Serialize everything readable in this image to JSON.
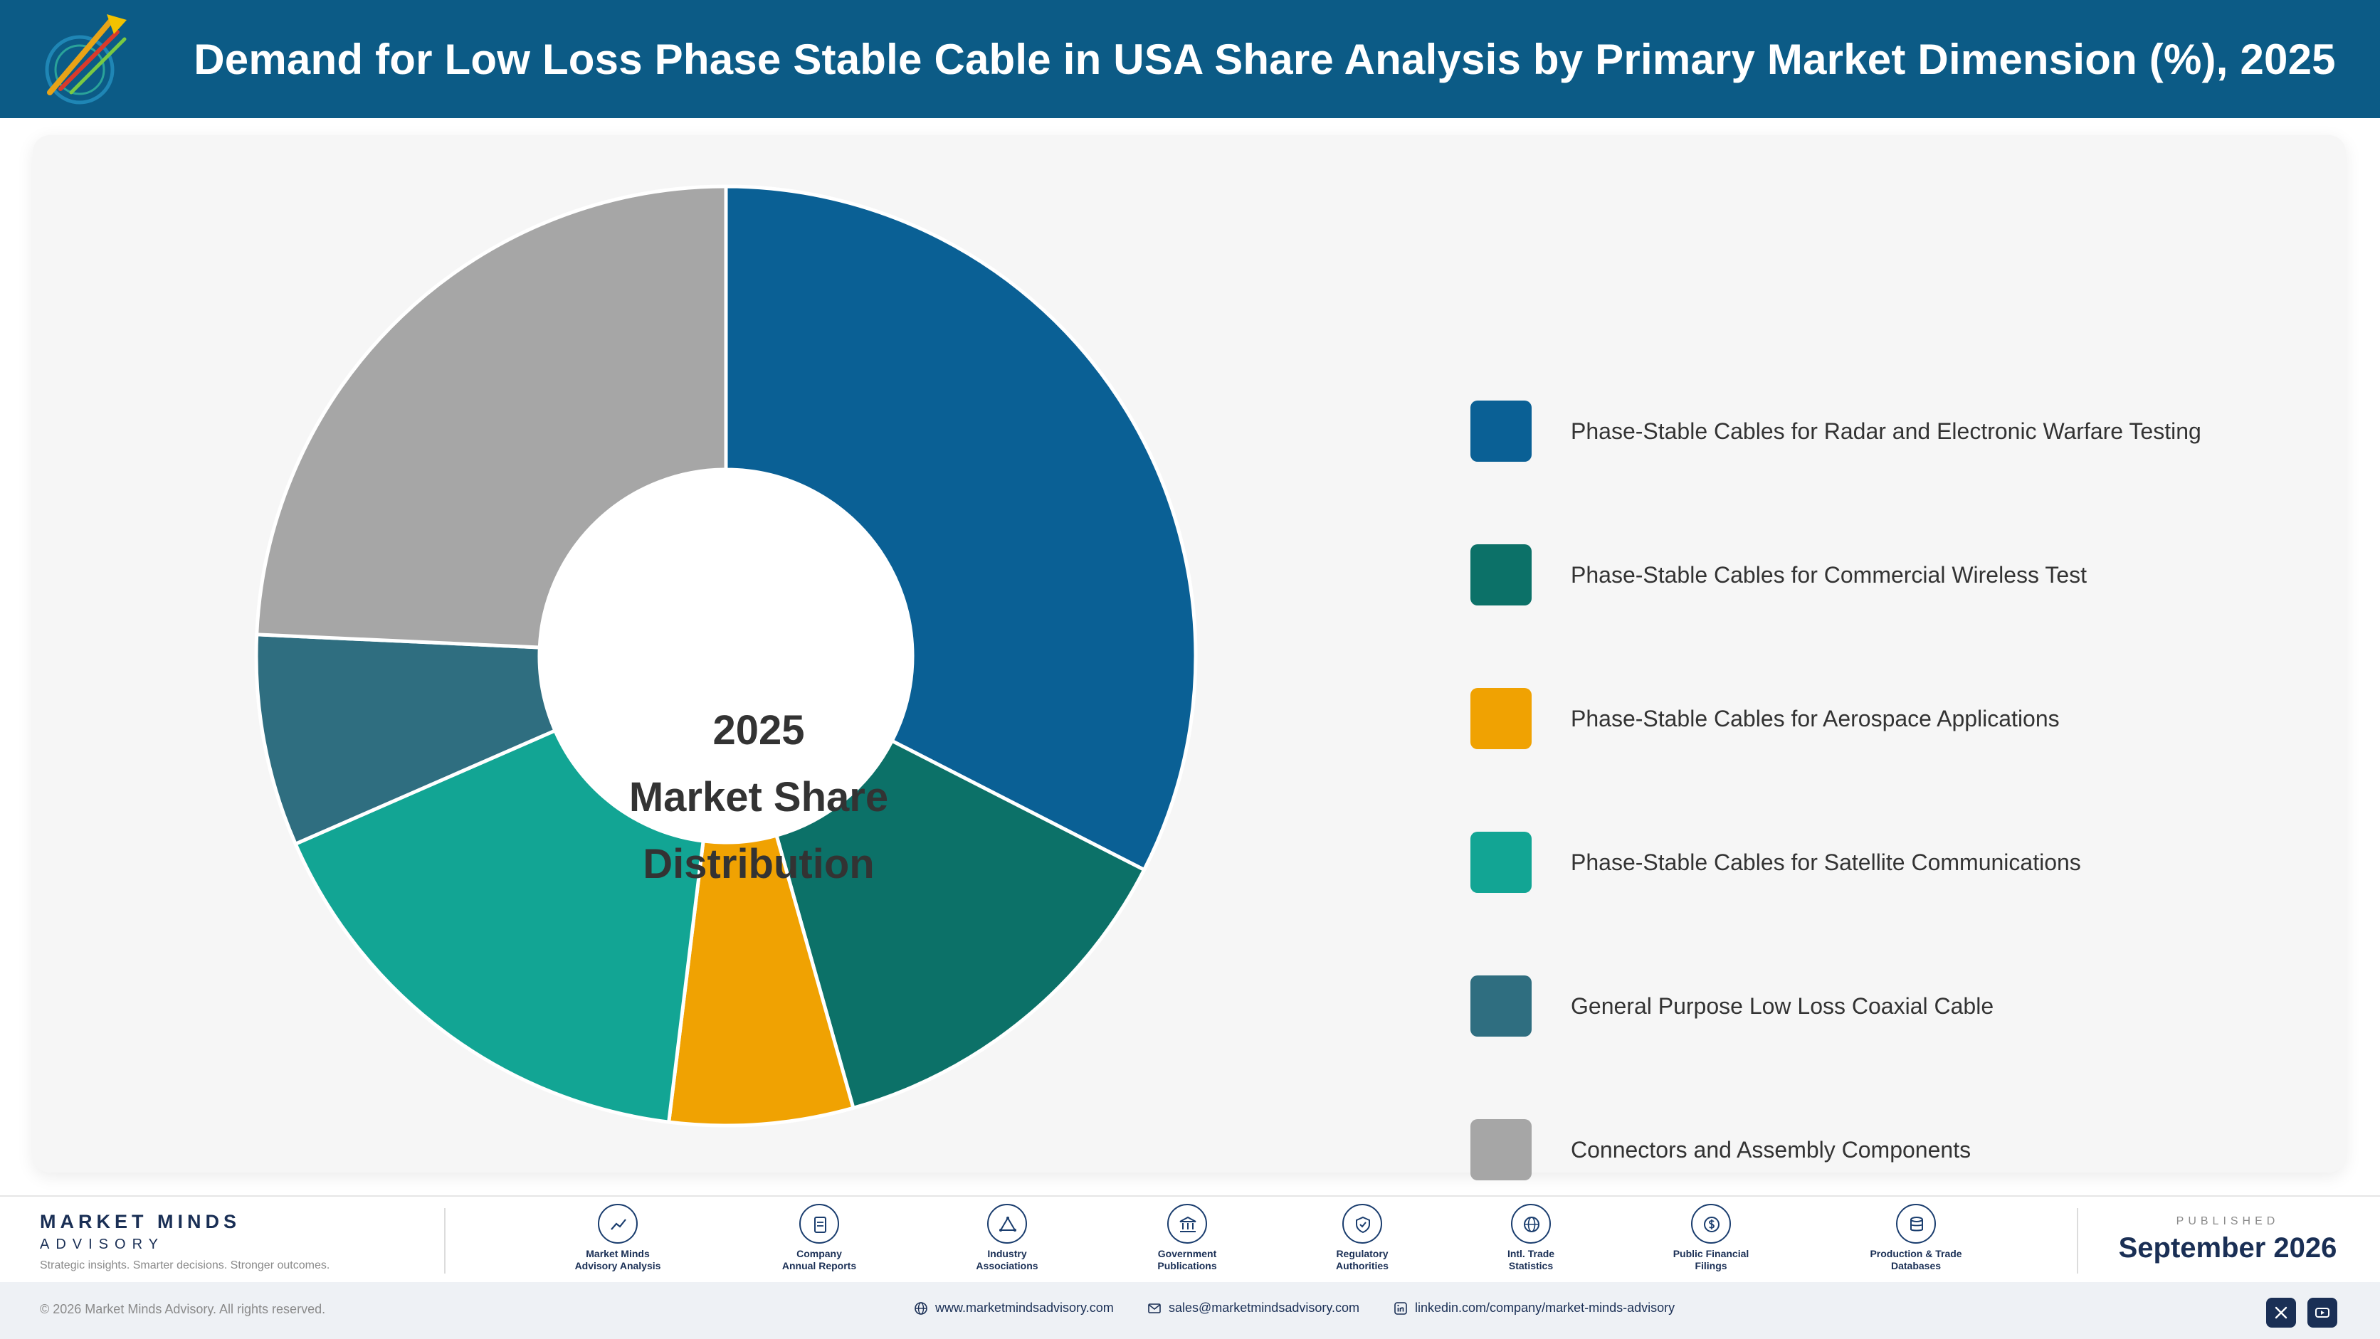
{
  "header": {
    "title": "Demand for Low Loss Phase Stable Cable in USA Share Analysis by Primary Market Dimension (%), 2025"
  },
  "chart_data": {
    "type": "pie",
    "title": "Demand for Low Loss Phase Stable Cable in USA Share Analysis by Primary Market Dimension (%), 2025",
    "center_label": [
      "2025",
      "Market Share",
      "Distribution"
    ],
    "categories": [
      "Phase-Stable Cables for Radar and Electronic Warfare Testing",
      "Phase-Stable Cables for Commercial Wireless Test",
      "Phase-Stable Cables for Aerospace Applications",
      "Phase-Stable Cables for Satellite Communications",
      "General Purpose Low Loss Coaxial Cable",
      "Connectors and Assembly Components"
    ],
    "values": [
      33.5,
      13.5,
      6.5,
      17.0,
      7.5,
      25.0
    ],
    "colors": [
      "#0a6095",
      "#0c7168",
      "#f0a202",
      "#12a594",
      "#2f6e80",
      "#a6a6a6"
    ],
    "legend_position": "right"
  },
  "footer": {
    "brand_name": "MARKET MINDS",
    "brand_sub": "ADVISORY",
    "brand_tagline": "Strategic insights. Smarter decisions. Stronger outcomes.",
    "sources": [
      {
        "line1": "Market Minds",
        "line2": "Advisory Analysis",
        "icon": "chart-line-icon"
      },
      {
        "line1": "Company",
        "line2": "Annual Reports",
        "icon": "document-icon"
      },
      {
        "line1": "Industry",
        "line2": "Associations",
        "icon": "network-icon"
      },
      {
        "line1": "Government",
        "line2": "Publications",
        "icon": "building-icon"
      },
      {
        "line1": "Regulatory",
        "line2": "Authorities",
        "icon": "shield-icon"
      },
      {
        "line1": "Intl. Trade",
        "line2": "Statistics",
        "icon": "globe-icon"
      },
      {
        "line1": "Public Financial",
        "line2": "Filings",
        "icon": "dollar-icon"
      },
      {
        "line1": "Production & Trade",
        "line2": "Databases",
        "icon": "database-icon"
      }
    ],
    "published_label": "PUBLISHED",
    "published_date": "September 2026"
  },
  "bottom_bar": {
    "copyright": "© 2026 Market Minds Advisory. All rights reserved.",
    "website": "www.marketmindsadvisory.com",
    "email": "sales@marketmindsadvisory.com",
    "linkedin": "linkedin.com/company/market-minds-advisory"
  }
}
